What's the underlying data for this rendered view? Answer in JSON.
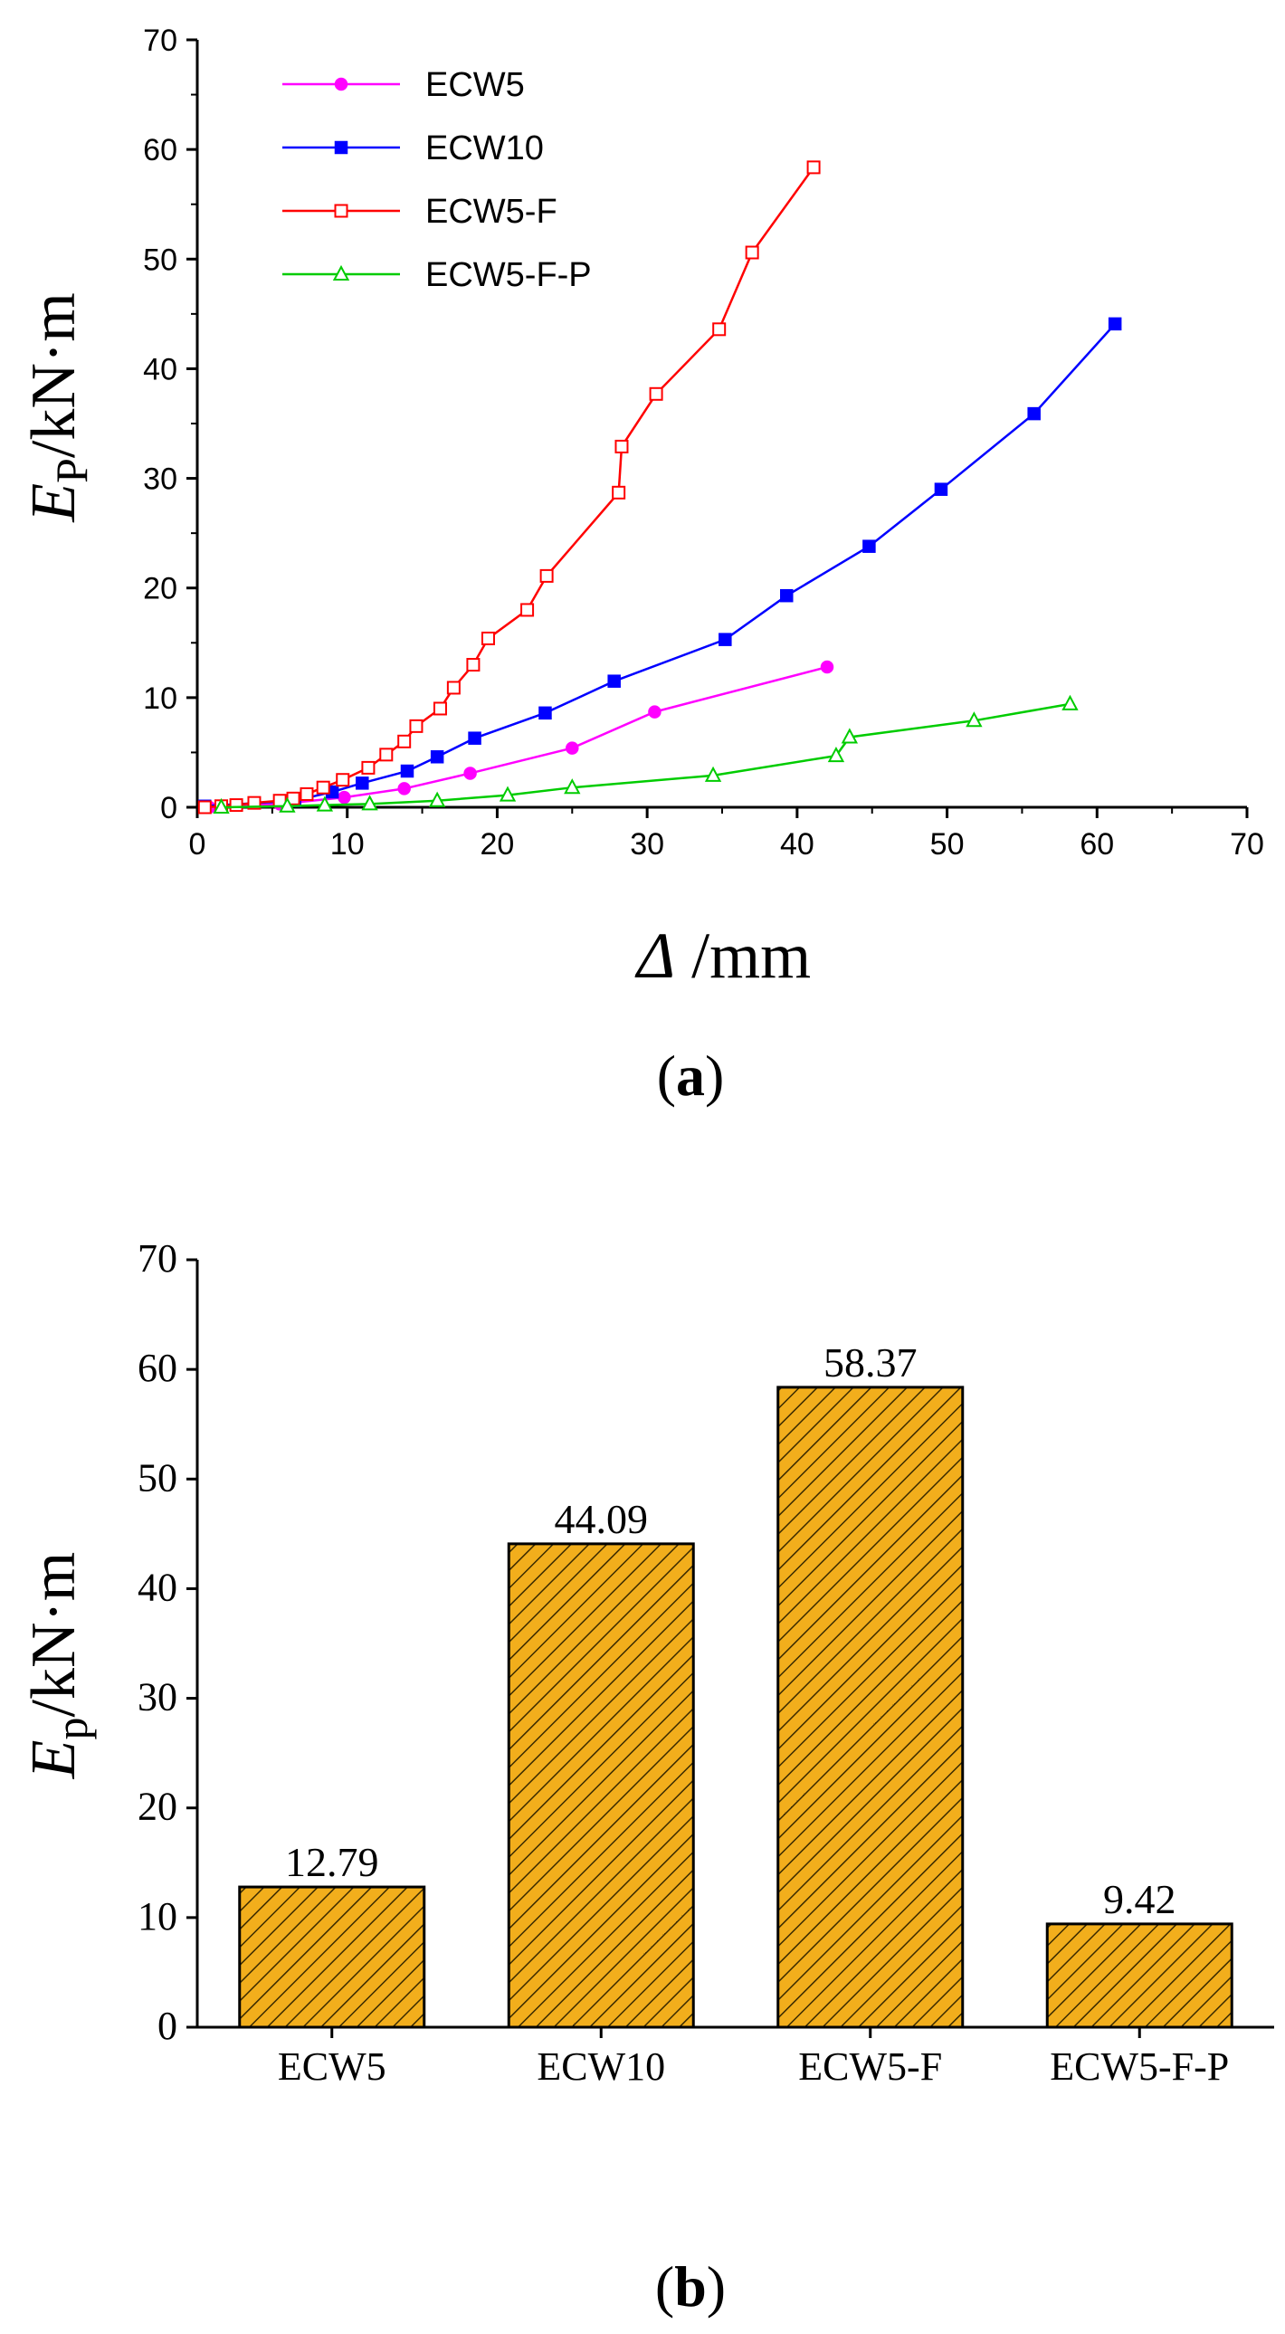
{
  "chart_data": [
    {
      "type": "line",
      "panel_label": "(a)",
      "panel_letter": "a",
      "ylabel": {
        "main": "E",
        "sub": "P",
        "rest": "/kN·m"
      },
      "xlabel": {
        "symbol": "Δ",
        "unit": " /mm"
      },
      "xlim": [
        0,
        70
      ],
      "ylim": [
        0,
        70
      ],
      "xticks": [
        0,
        10,
        20,
        30,
        40,
        50,
        60,
        70
      ],
      "yticks": [
        0,
        10,
        20,
        30,
        40,
        50,
        60,
        70
      ],
      "legend_position": "top-left",
      "series": [
        {
          "name": "ECW5",
          "color": "#ff00ff",
          "marker": "circle-filled",
          "x": [
            0.8,
            5.5,
            9.8,
            13.8,
            18.2,
            25.0,
            30.5,
            42.0
          ],
          "y": [
            0.0,
            0.3,
            0.9,
            1.7,
            3.1,
            5.4,
            8.7,
            12.79
          ]
        },
        {
          "name": "ECW10",
          "color": "#0000ff",
          "marker": "square-filled",
          "x": [
            0.5,
            6.5,
            9.0,
            11.0,
            14.0,
            16.0,
            18.5,
            23.2,
            27.8,
            35.2,
            39.3,
            44.8,
            49.6,
            55.8,
            61.2
          ],
          "y": [
            0.1,
            0.6,
            1.4,
            2.2,
            3.3,
            4.6,
            6.3,
            8.6,
            11.5,
            15.3,
            19.3,
            23.8,
            29.0,
            35.9,
            44.09
          ]
        },
        {
          "name": "ECW5-F",
          "color": "#ff0000",
          "marker": "square-open",
          "x": [
            0.5,
            1.6,
            2.6,
            3.8,
            5.5,
            6.4,
            7.3,
            8.4,
            9.7,
            11.4,
            12.6,
            13.8,
            14.6,
            16.2,
            17.1,
            18.4,
            19.4,
            22.0,
            23.3,
            28.1,
            28.3,
            30.6,
            34.8,
            37.0,
            41.1
          ],
          "y": [
            0.0,
            0.1,
            0.2,
            0.4,
            0.6,
            0.8,
            1.2,
            1.8,
            2.5,
            3.6,
            4.8,
            6.0,
            7.4,
            9.0,
            10.9,
            13.0,
            15.4,
            18.0,
            21.1,
            28.7,
            32.9,
            37.7,
            43.6,
            50.6,
            58.37
          ]
        },
        {
          "name": "ECW5-F-P",
          "color": "#00cc00",
          "marker": "triangle-open",
          "x": [
            1.6,
            6.0,
            8.5,
            11.5,
            16.0,
            20.7,
            25.0,
            34.4,
            42.6,
            43.5,
            51.8,
            58.2
          ],
          "y": [
            0.0,
            0.1,
            0.2,
            0.3,
            0.6,
            1.1,
            1.8,
            2.9,
            4.7,
            6.4,
            7.9,
            9.42
          ]
        }
      ]
    },
    {
      "type": "bar",
      "panel_label": "(b)",
      "panel_letter": "b",
      "ylabel": {
        "main": "E",
        "sub": "p",
        "rest": "/kN·m"
      },
      "ylim": [
        0,
        70
      ],
      "yticks": [
        0,
        10,
        20,
        30,
        40,
        50,
        60,
        70
      ],
      "categories": [
        "ECW5",
        "ECW10",
        "ECW5-F",
        "ECW5-F-P"
      ],
      "values": [
        12.79,
        44.09,
        58.37,
        9.42
      ],
      "value_labels": [
        "12.79",
        "44.09",
        "58.37",
        "9.42"
      ],
      "fill_color": "#f2ae1c",
      "hatch_color": "#3a2a00",
      "hatch": "diagonal"
    }
  ]
}
